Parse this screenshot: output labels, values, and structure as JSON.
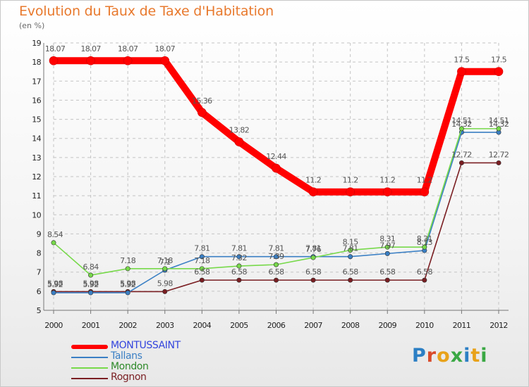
{
  "header": {
    "title": "Evolution du Taux de Taxe d'Habitation",
    "subtitle": "(en %)"
  },
  "logo": {
    "text": "Proxiti",
    "letter_colors": [
      "#2c7fc4",
      "#d94a2a",
      "#e8a21a",
      "#3aa844",
      "#2c7fc4",
      "#e8a21a",
      "#3aa844"
    ]
  },
  "chart_data": {
    "type": "line",
    "title": "Evolution du Taux de Taxe d'Habitation",
    "ylabel": "(en %)",
    "xlabel": "",
    "x": [
      "2000",
      "2001",
      "2002",
      "2003",
      "2004",
      "2005",
      "2006",
      "2007",
      "2008",
      "2009",
      "2010",
      "2011",
      "2012"
    ],
    "ylim": [
      5,
      19
    ],
    "yticks": [
      5,
      6,
      7,
      8,
      9,
      10,
      11,
      12,
      13,
      14,
      15,
      16,
      17,
      18,
      19
    ],
    "grid": true,
    "legend_position": "bottom-left",
    "series": [
      {
        "name": "MONTUSSAINT",
        "color": "#ff0000",
        "values": [
          18.07,
          18.07,
          18.07,
          18.07,
          15.36,
          13.82,
          12.44,
          11.2,
          11.2,
          11.2,
          11.2,
          17.5,
          17.5
        ],
        "labels": [
          "18.07",
          "18.07",
          "18.07",
          "18.07",
          "15.36",
          "13.82",
          "12.44",
          "11.2",
          "11.2",
          "11.2",
          "11.2",
          "17.5",
          "17.5"
        ]
      },
      {
        "name": "Tallans",
        "color": "#3a7fc4",
        "values": [
          5.92,
          5.92,
          5.92,
          7.1,
          7.81,
          7.81,
          7.81,
          7.81,
          7.81,
          7.97,
          8.13,
          14.32,
          14.32
        ],
        "labels": [
          "5.92",
          "5.92",
          "5.92",
          "7.1",
          "7.81",
          "7.81",
          "7.81",
          "7.81",
          "7.81",
          "7.97",
          "8.13",
          "14.32",
          "14.32"
        ]
      },
      {
        "name": "Mondon",
        "color": "#77d94a",
        "values": [
          8.54,
          6.84,
          7.18,
          7.18,
          7.18,
          7.32,
          7.39,
          7.76,
          8.15,
          8.31,
          8.31,
          14.51,
          14.51
        ],
        "labels": [
          "8.54",
          "6.84",
          "7.18",
          "7.18",
          "7.18",
          "7.32",
          "7.39",
          "7.76",
          "8.15",
          "8.31",
          "8.31",
          "14.51",
          "14.51"
        ]
      },
      {
        "name": "Rognon",
        "color": "#7a1e22",
        "values": [
          5.98,
          5.98,
          5.98,
          5.98,
          6.58,
          6.58,
          6.58,
          6.58,
          6.58,
          6.58,
          6.58,
          12.72,
          12.72
        ],
        "labels": [
          "5.98",
          "5.98",
          "5.98",
          "5.98",
          "6.58",
          "6.58",
          "6.58",
          "6.58",
          "6.58",
          "6.58",
          "6.58",
          "12.72",
          "12.72"
        ]
      }
    ]
  },
  "legend": {
    "items": [
      {
        "name": "MONTUSSAINT",
        "color": "#ff0000",
        "text_color": "#3344dd"
      },
      {
        "name": "Tallans",
        "color": "#3a7fc4",
        "text_color": "#3a7fc4"
      },
      {
        "name": "Mondon",
        "color": "#77d94a",
        "text_color": "#2e8a2a"
      },
      {
        "name": "Rognon",
        "color": "#7a1e22",
        "text_color": "#7a1e22"
      }
    ]
  }
}
